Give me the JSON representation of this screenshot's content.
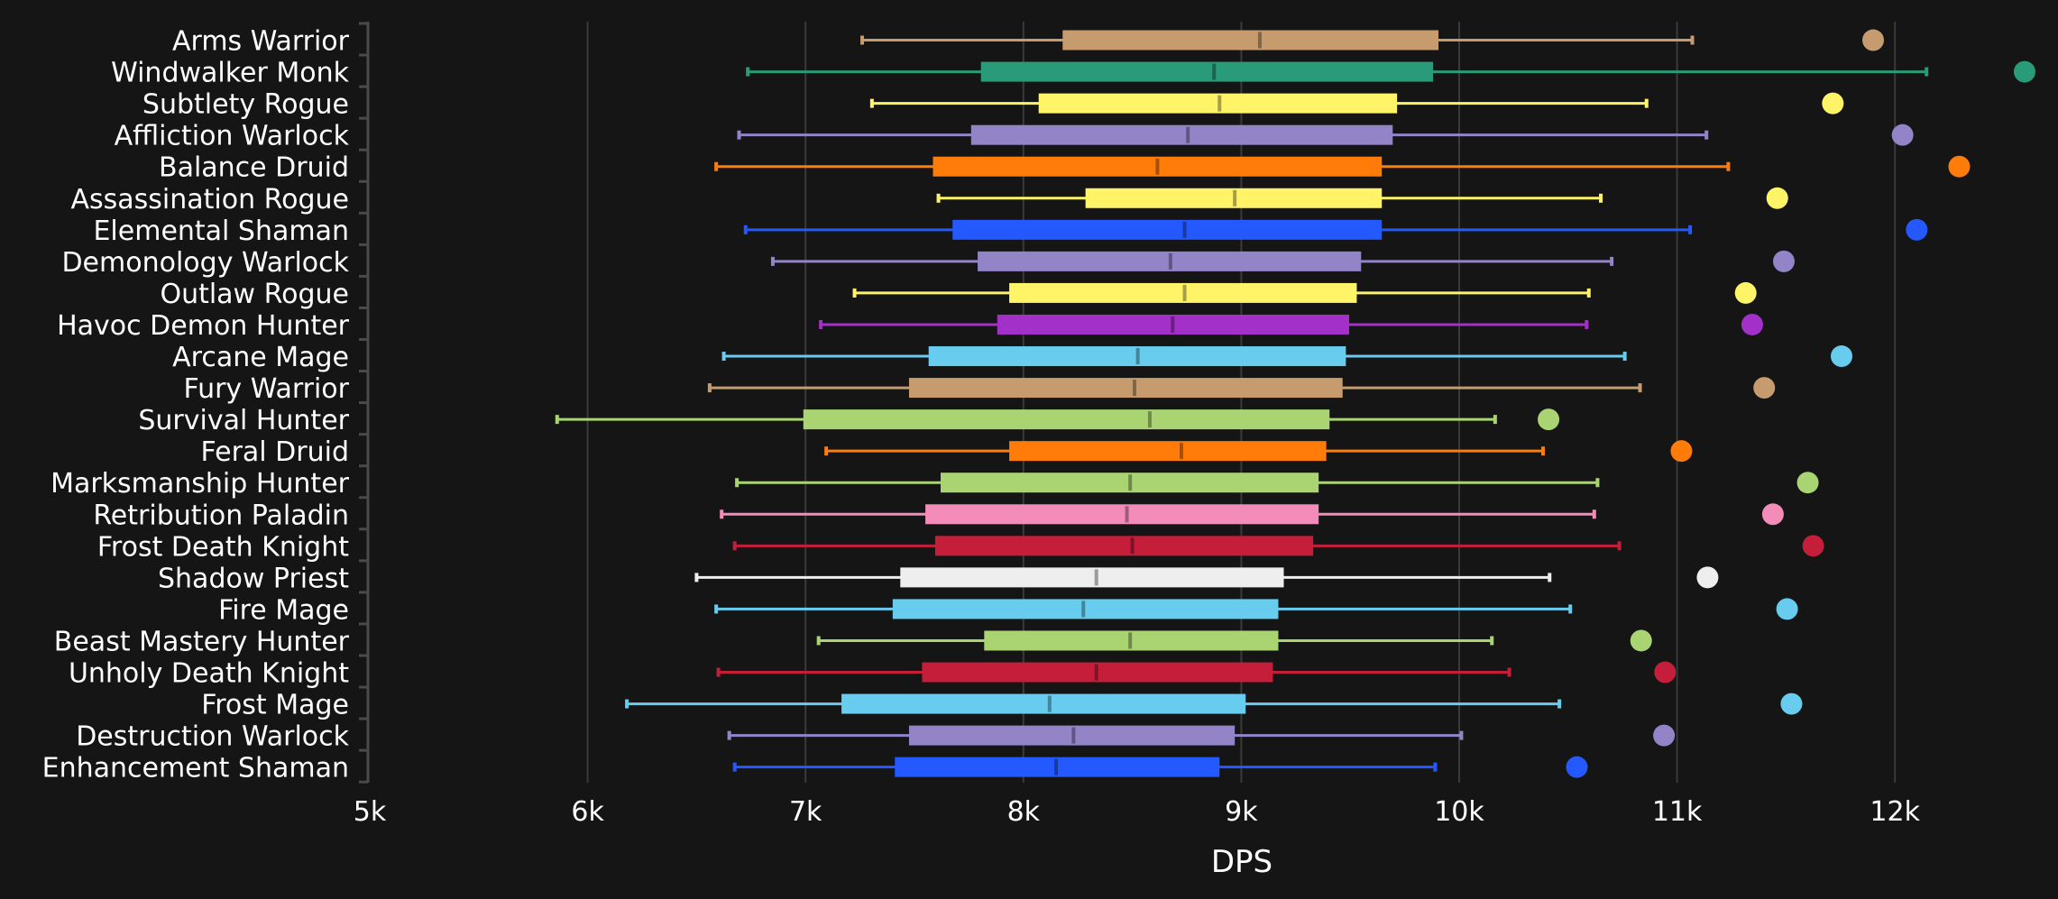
{
  "chart_data": {
    "type": "box",
    "title": "",
    "xlabel": "DPS",
    "ylabel": "",
    "xlim": [
      5000,
      12700
    ],
    "x_ticks": [
      5000,
      6000,
      7000,
      8000,
      9000,
      10000,
      11000,
      12000
    ],
    "x_tick_labels": [
      "5k",
      "6k",
      "7k",
      "8k",
      "9k",
      "10k",
      "11k",
      "12k"
    ],
    "grid": "vertical",
    "legend": "none",
    "series": [
      {
        "name": "Arms Warrior",
        "color": "#C69B6D",
        "whisker_low": 7260,
        "q1": 8180,
        "median": 9085,
        "q3": 9905,
        "whisker_high": 11070,
        "outlier": 11900
      },
      {
        "name": "Windwalker Monk",
        "color": "#2A9B78",
        "whisker_low": 6735,
        "q1": 7805,
        "median": 8875,
        "q3": 9880,
        "whisker_high": 12145,
        "outlier": 12595
      },
      {
        "name": "Subtlety Rogue",
        "color": "#FFF468",
        "whisker_low": 7305,
        "q1": 8070,
        "median": 8900,
        "q3": 9715,
        "whisker_high": 10860,
        "outlier": 11715
      },
      {
        "name": "Affliction Warlock",
        "color": "#9384C8",
        "whisker_low": 6695,
        "q1": 7760,
        "median": 8755,
        "q3": 9695,
        "whisker_high": 11135,
        "outlier": 12035
      },
      {
        "name": "Balance Druid",
        "color": "#FF7C0A",
        "whisker_low": 6590,
        "q1": 7585,
        "median": 8615,
        "q3": 9645,
        "whisker_high": 11235,
        "outlier": 12295
      },
      {
        "name": "Assassination Rogue",
        "color": "#FFF468",
        "whisker_low": 7610,
        "q1": 8285,
        "median": 8970,
        "q3": 9645,
        "whisker_high": 10650,
        "outlier": 11460
      },
      {
        "name": "Elemental Shaman",
        "color": "#2459FF",
        "whisker_low": 6725,
        "q1": 7675,
        "median": 8740,
        "q3": 9645,
        "whisker_high": 11060,
        "outlier": 12100
      },
      {
        "name": "Demonology Warlock",
        "color": "#9384C8",
        "whisker_low": 6850,
        "q1": 7790,
        "median": 8675,
        "q3": 9550,
        "whisker_high": 10700,
        "outlier": 11490
      },
      {
        "name": "Outlaw Rogue",
        "color": "#FFF468",
        "whisker_low": 7225,
        "q1": 7935,
        "median": 8740,
        "q3": 9530,
        "whisker_high": 10595,
        "outlier": 11315
      },
      {
        "name": "Havoc Demon Hunter",
        "color": "#A330C9",
        "whisker_low": 7070,
        "q1": 7880,
        "median": 8685,
        "q3": 9495,
        "whisker_high": 10585,
        "outlier": 11345
      },
      {
        "name": "Arcane Mage",
        "color": "#68CCEF",
        "whisker_low": 6625,
        "q1": 7565,
        "median": 8525,
        "q3": 9480,
        "whisker_high": 10760,
        "outlier": 11755
      },
      {
        "name": "Fury Warrior",
        "color": "#C69B6D",
        "whisker_low": 6560,
        "q1": 7475,
        "median": 8510,
        "q3": 9465,
        "whisker_high": 10830,
        "outlier": 11400
      },
      {
        "name": "Survival Hunter",
        "color": "#AAD372",
        "whisker_low": 5860,
        "q1": 6990,
        "median": 8580,
        "q3": 9405,
        "whisker_high": 10165,
        "outlier": 10410
      },
      {
        "name": "Feral Druid",
        "color": "#FF7C0A",
        "whisker_low": 7095,
        "q1": 7935,
        "median": 8725,
        "q3": 9390,
        "whisker_high": 10385,
        "outlier": 11020
      },
      {
        "name": "Marksmanship Hunter",
        "color": "#AAD372",
        "whisker_low": 6685,
        "q1": 7620,
        "median": 8490,
        "q3": 9355,
        "whisker_high": 10635,
        "outlier": 11600
      },
      {
        "name": "Retribution Paladin",
        "color": "#F48CBA",
        "whisker_low": 6615,
        "q1": 7550,
        "median": 8475,
        "q3": 9355,
        "whisker_high": 10620,
        "outlier": 11440
      },
      {
        "name": "Frost Death Knight",
        "color": "#C41E3A",
        "whisker_low": 6675,
        "q1": 7595,
        "median": 8500,
        "q3": 9330,
        "whisker_high": 10735,
        "outlier": 11625
      },
      {
        "name": "Shadow Priest",
        "color": "#EEEEEE",
        "whisker_low": 6500,
        "q1": 7435,
        "median": 8335,
        "q3": 9195,
        "whisker_high": 10415,
        "outlier": 11140
      },
      {
        "name": "Fire Mage",
        "color": "#68CCEF",
        "whisker_low": 6590,
        "q1": 7400,
        "median": 8275,
        "q3": 9170,
        "whisker_high": 10510,
        "outlier": 11505
      },
      {
        "name": "Beast Mastery Hunter",
        "color": "#AAD372",
        "whisker_low": 7060,
        "q1": 7820,
        "median": 8490,
        "q3": 9170,
        "whisker_high": 10150,
        "outlier": 10835
      },
      {
        "name": "Unholy Death Knight",
        "color": "#C41E3A",
        "whisker_low": 6600,
        "q1": 7535,
        "median": 8335,
        "q3": 9145,
        "whisker_high": 10230,
        "outlier": 10945
      },
      {
        "name": "Frost Mage",
        "color": "#68CCEF",
        "whisker_low": 6180,
        "q1": 7165,
        "median": 8120,
        "q3": 9020,
        "whisker_high": 10460,
        "outlier": 11525
      },
      {
        "name": "Destruction Warlock",
        "color": "#9384C8",
        "whisker_low": 6650,
        "q1": 7475,
        "median": 8230,
        "q3": 8970,
        "whisker_high": 10010,
        "outlier": 10940
      },
      {
        "name": "Enhancement Shaman",
        "color": "#2459FF",
        "whisker_low": 6675,
        "q1": 7410,
        "median": 8150,
        "q3": 8900,
        "whisker_high": 9890,
        "outlier": 10540
      }
    ]
  },
  "colors": {
    "background": "#151515",
    "grid": "#3a3a3a",
    "axis": "#4a4a4a",
    "text": "#ffffff"
  }
}
